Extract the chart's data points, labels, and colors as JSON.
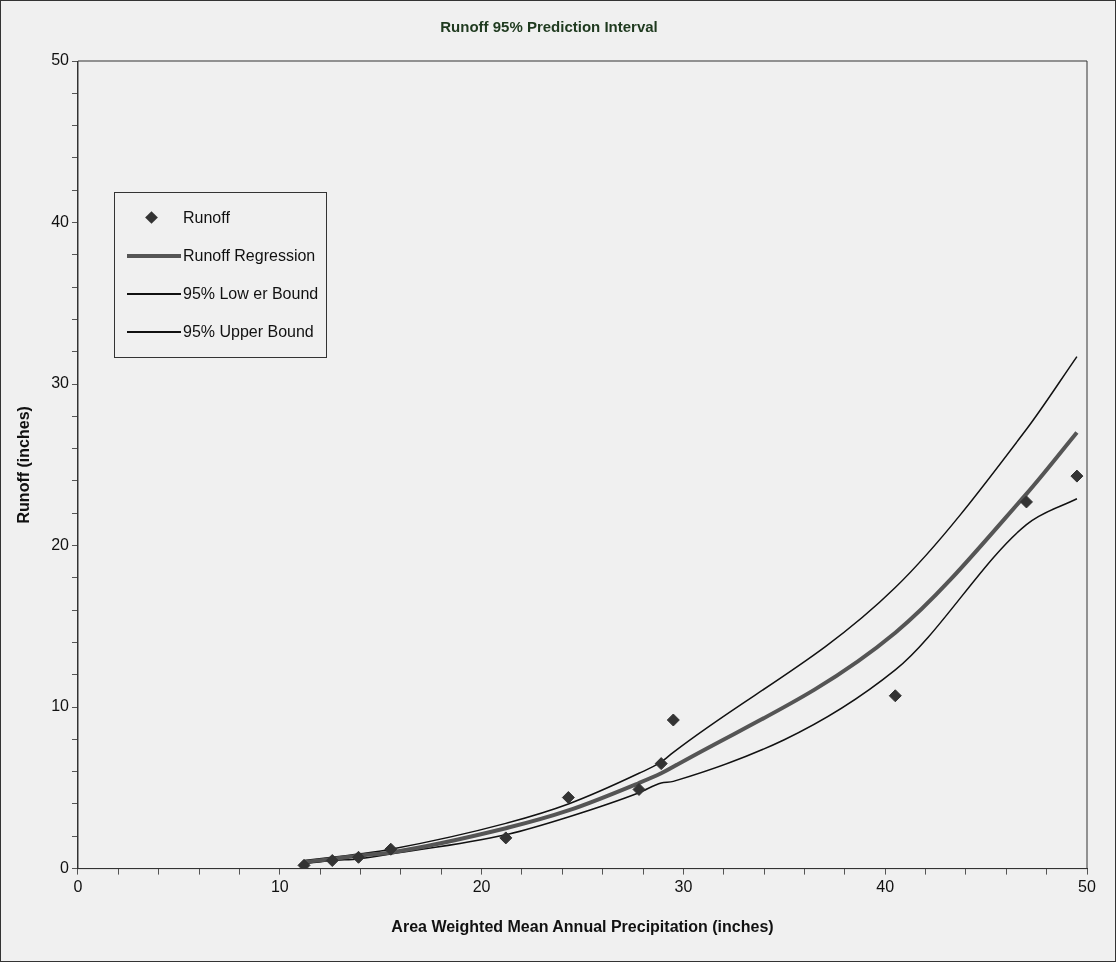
{
  "chart_data": {
    "type": "scatter",
    "title": "Runoff 95% Prediction Interval",
    "xlabel": "Area Weighted Mean Annual Precipitation (inches)",
    "ylabel": "Runoff (inches)",
    "xlim": [
      0,
      50
    ],
    "ylim": [
      0,
      50
    ],
    "xticks": [
      0,
      {
        "value": 2,
        "label": null
      },
      {
        "value": 4,
        "label": null
      },
      {
        "value": 6,
        "label": null
      },
      {
        "value": 8,
        "label": null
      },
      10,
      {
        "value": 12,
        "label": null
      },
      {
        "value": 14,
        "label": null
      },
      {
        "value": 16,
        "label": null
      },
      {
        "value": 18,
        "label": null
      },
      20,
      {
        "value": 22,
        "label": null
      },
      {
        "value": 24,
        "label": null
      },
      {
        "value": 26,
        "label": null
      },
      {
        "value": 28,
        "label": null
      },
      30,
      {
        "value": 32,
        "label": null
      },
      {
        "value": 34,
        "label": null
      },
      {
        "value": 36,
        "label": null
      },
      {
        "value": 38,
        "label": null
      },
      40,
      {
        "value": 42,
        "label": null
      },
      {
        "value": 44,
        "label": null
      },
      {
        "value": 46,
        "label": null
      },
      {
        "value": 48,
        "label": null
      },
      50
    ],
    "yticks": [
      0,
      {
        "value": 2,
        "label": null
      },
      {
        "value": 4,
        "label": null
      },
      {
        "value": 6,
        "label": null
      },
      {
        "value": 8,
        "label": null
      },
      10,
      {
        "value": 12,
        "label": null
      },
      {
        "value": 14,
        "label": null
      },
      {
        "value": 16,
        "label": null
      },
      {
        "value": 18,
        "label": null
      },
      20,
      {
        "value": 22,
        "label": null
      },
      {
        "value": 24,
        "label": null
      },
      {
        "value": 26,
        "label": null
      },
      {
        "value": 28,
        "label": null
      },
      30,
      {
        "value": 32,
        "label": null
      },
      {
        "value": 34,
        "label": null
      },
      {
        "value": 36,
        "label": null
      },
      {
        "value": 38,
        "label": null
      },
      40,
      {
        "value": 42,
        "label": null
      },
      {
        "value": 44,
        "label": null
      },
      {
        "value": 46,
        "label": null
      },
      {
        "value": 48,
        "label": null
      },
      50
    ],
    "grid": false,
    "legend": "top left",
    "marker": "diamond",
    "series": [
      {
        "name": "Runoff",
        "color": "#333333",
        "x": [
          11.2,
          12.6,
          13.9,
          15.5,
          21.2,
          24.3,
          27.8,
          28.9,
          29.5,
          40.5,
          47.0,
          49.5
        ],
        "values": [
          0.2,
          0.5,
          0.7,
          1.2,
          1.9,
          4.4,
          4.9,
          6.5,
          9.2,
          10.7,
          22.7,
          24.3
        ]
      },
      {
        "name": "Runoff Regression",
        "type": "line",
        "marker": "none",
        "color": "#555555",
        "x": [
          11.2,
          12.6,
          13.9,
          15.5,
          21.2,
          24.3,
          27.8,
          28.9,
          29.5,
          40.5,
          47.0,
          49.5
        ],
        "values": [
          0.4,
          0.6,
          0.8,
          1.0,
          2.5,
          3.6,
          5.3,
          5.9,
          6.3,
          14.6,
          23.2,
          27.0
        ]
      },
      {
        "name": "95% Low er Bound",
        "type": "line",
        "marker": "none",
        "color": "#111111",
        "x": [
          11.2,
          12.6,
          13.9,
          15.5,
          21.2,
          24.3,
          27.8,
          28.9,
          29.5,
          40.5,
          47.0,
          49.5
        ],
        "values": [
          0.3,
          0.5,
          0.6,
          0.9,
          2.1,
          3.2,
          4.7,
          5.3,
          5.4,
          12.3,
          21.3,
          22.9
        ]
      },
      {
        "name": "95% Upper Bound",
        "type": "line",
        "marker": "none",
        "color": "#111111",
        "x": [
          11.2,
          12.6,
          13.9,
          15.5,
          21.2,
          24.3,
          27.8,
          28.9,
          29.5,
          40.5,
          47.0,
          49.5
        ],
        "values": [
          0.5,
          0.7,
          0.9,
          1.2,
          2.8,
          4.0,
          5.9,
          6.6,
          7.2,
          17.4,
          27.2,
          31.7
        ]
      }
    ]
  }
}
